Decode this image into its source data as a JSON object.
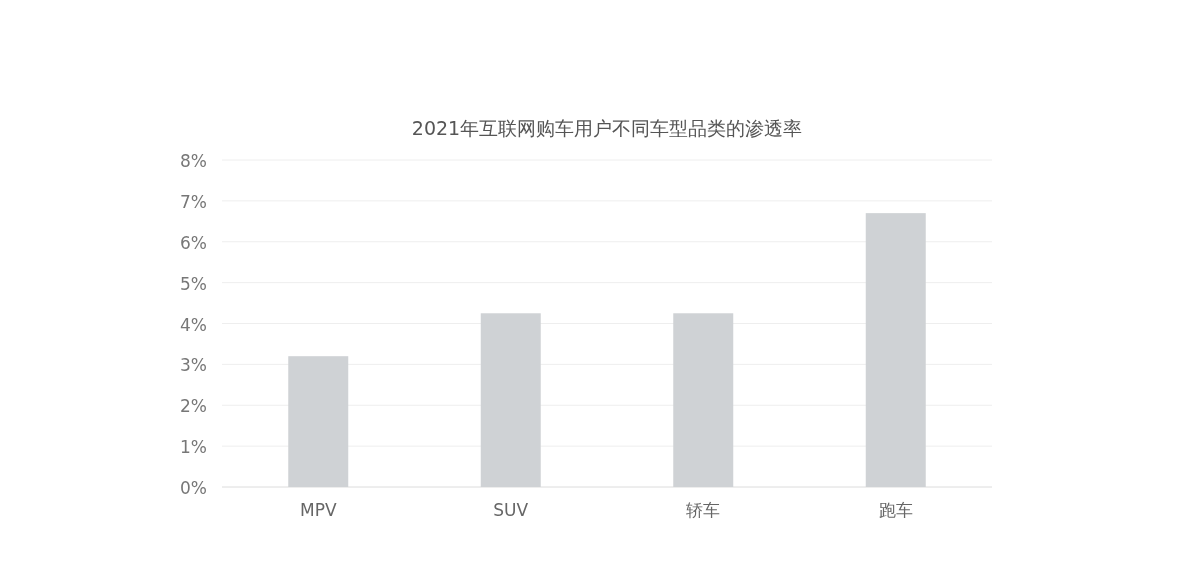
{
  "chart_data": {
    "type": "bar",
    "title": "2021年互联网购车用户不同车型品类的渗透率",
    "categories": [
      "MPV",
      "SUV",
      "轿车",
      "跑车"
    ],
    "values": [
      3.2,
      4.25,
      4.25,
      6.7
    ],
    "color": "#cfd2d5",
    "ylim": [
      0,
      8
    ],
    "yticks": [
      {
        "value": 0,
        "label": "0%"
      },
      {
        "value": 1,
        "label": "1%"
      },
      {
        "value": 2,
        "label": "2%"
      },
      {
        "value": 3,
        "label": "3%"
      },
      {
        "value": 4,
        "label": "4%"
      },
      {
        "value": 5,
        "label": "5%"
      },
      {
        "value": 6,
        "label": "6%"
      },
      {
        "value": 7,
        "label": "7%"
      },
      {
        "value": 8,
        "label": "8%"
      }
    ],
    "grid": "y"
  }
}
